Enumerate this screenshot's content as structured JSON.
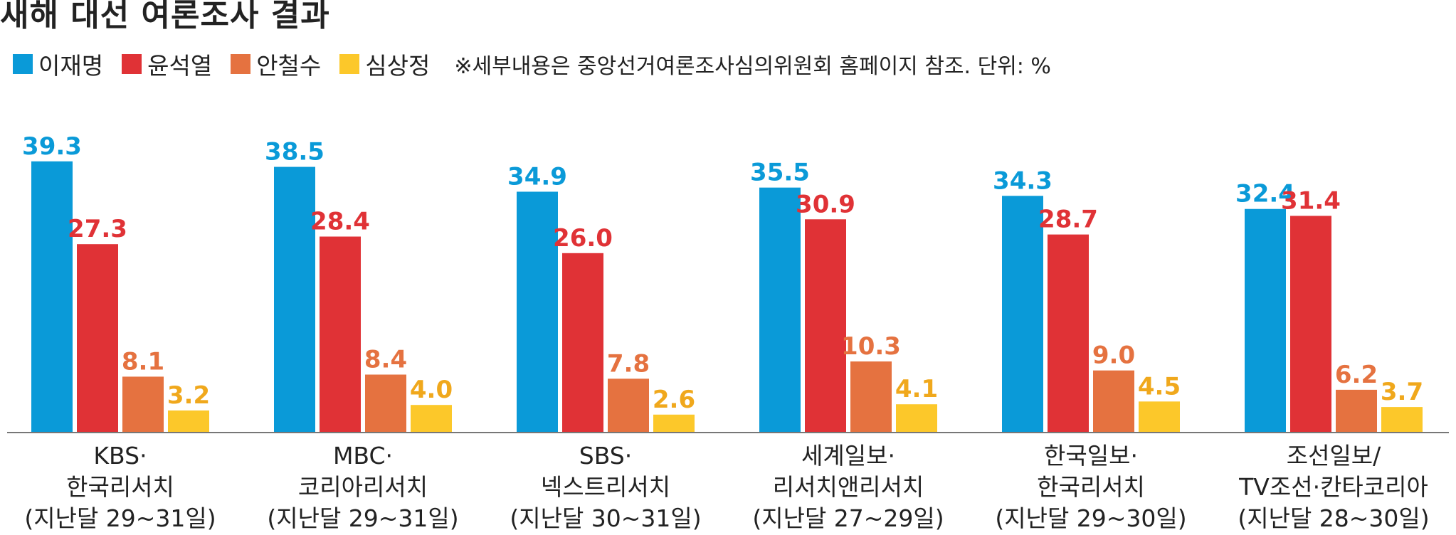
{
  "title": "새해 대선 여론조사 결과",
  "note": "※세부내용은 중앙선거여론조사심의위원회 홈페이지 참조. 단위: %",
  "chart_data": {
    "type": "bar",
    "title": "새해 대선 여론조사 결과",
    "unit": "%",
    "legend_position": "top-left",
    "grid": false,
    "ylim": [
      0,
      40
    ],
    "categories": [
      [
        "KBS·",
        "한국리서치",
        "(지난달 29~31일)"
      ],
      [
        "MBC·",
        "코리아리서치",
        "(지난달 29~31일)"
      ],
      [
        "SBS·",
        "넥스트리서치",
        "(지난달 30~31일)"
      ],
      [
        "세계일보·",
        "리서치앤리서치",
        "(지난달 27~29일)"
      ],
      [
        "한국일보·",
        "한국리서치",
        "(지난달 29~30일)"
      ],
      [
        "조선일보/",
        "TV조선·칸타코리아",
        "(지난달 28~30일)"
      ]
    ],
    "series": [
      {
        "name": "이재명",
        "color": "#0a9ad8",
        "label_color": "#0a9ad8",
        "values": [
          39.3,
          38.5,
          34.9,
          35.5,
          34.3,
          32.4
        ]
      },
      {
        "name": "윤석열",
        "color": "#e03236",
        "label_color": "#e03236",
        "values": [
          27.3,
          28.4,
          26.0,
          30.9,
          28.7,
          31.4
        ]
      },
      {
        "name": "안철수",
        "color": "#e57240",
        "label_color": "#e57240",
        "values": [
          8.1,
          8.4,
          7.8,
          10.3,
          9.0,
          6.2
        ]
      },
      {
        "name": "심상정",
        "color": "#fcc82a",
        "label_color": "#f0a81c",
        "values": [
          3.2,
          4.0,
          2.6,
          4.1,
          4.5,
          3.7
        ]
      }
    ]
  }
}
